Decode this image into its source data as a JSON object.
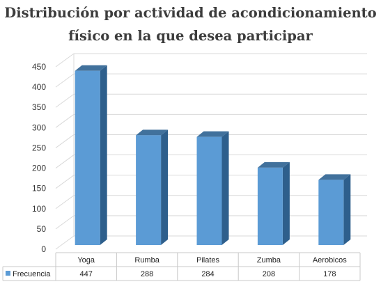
{
  "title": {
    "line1": "Distribución por actividad de acondicionamiento",
    "line2": "físico en la que desea participar"
  },
  "chart_data": {
    "type": "bar",
    "title": "Distribución por actividad de acondicionamiento físico en la que desea participar",
    "categories": [
      "Yoga",
      "Rumba",
      "Pilates",
      "Zumba",
      "Aerobicos"
    ],
    "series": [
      {
        "name": "Frecuencia",
        "values": [
          447,
          288,
          284,
          208,
          178
        ]
      }
    ],
    "ylim": [
      0,
      450
    ],
    "yticks": [
      0,
      50,
      100,
      150,
      200,
      250,
      300,
      350,
      400,
      450
    ],
    "grid": true,
    "style": "3d-column",
    "data_table": true,
    "colors": {
      "bar_front": "#5b9bd5",
      "bar_top": "#41719c",
      "bar_side": "#2e5f8c",
      "grid": "#d9d9d9"
    }
  }
}
